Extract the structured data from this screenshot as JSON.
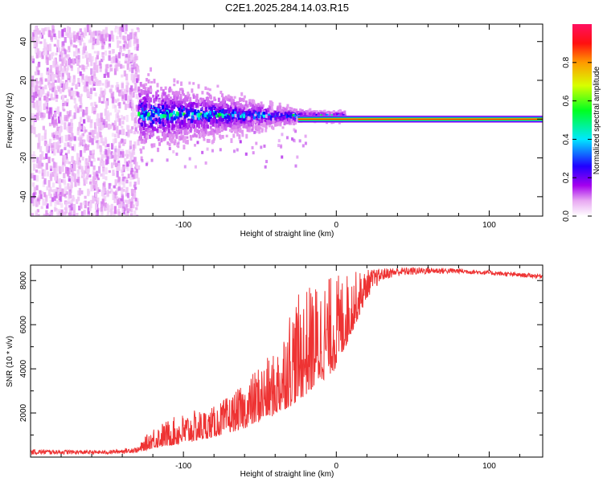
{
  "title": "C2E1.2025.284.14.03.R15",
  "chart_data": [
    {
      "type": "heatmap",
      "name": "spectrogram",
      "xlabel": "Height of straight line (km)",
      "ylabel": "Frequency (Hz)",
      "xlim": [
        -200,
        135
      ],
      "ylim": [
        -50,
        49
      ],
      "xticks": [
        -100,
        0,
        100
      ],
      "xtick_labels": [
        "-100",
        "0",
        "100"
      ],
      "yticks": [
        -40,
        -20,
        0,
        20,
        40
      ],
      "ytick_labels": [
        "-40",
        "-20",
        "0",
        "20",
        "40"
      ],
      "carrier_frequency_hz": 0,
      "carrier_start_km": -25,
      "noise_region_end_km": -130,
      "colorbar": {
        "label": "Normalized spectral amplitude",
        "range": [
          0,
          1
        ],
        "ticks": [
          0.0,
          0.2,
          0.4,
          0.6,
          0.8
        ],
        "tick_labels": [
          "0.0",
          "0.2",
          "0.4",
          "0.6",
          "0.8"
        ],
        "colormap": [
          "#ffffff",
          "#dd88ee",
          "#9a00ee",
          "#0000ff",
          "#00ffff",
          "#00ff00",
          "#ffff00",
          "#ff7f00",
          "#ff0000"
        ]
      }
    },
    {
      "type": "line",
      "name": "snr",
      "xlabel": "Height of straight line (km)",
      "ylabel": "SNR (10 * v/v)",
      "xlim": [
        -200,
        135
      ],
      "ylim": [
        0,
        8700
      ],
      "xticks": [
        -100,
        0,
        100
      ],
      "xtick_labels": [
        "-100",
        "0",
        "100"
      ],
      "yticks": [
        2000,
        4000,
        6000,
        8000
      ],
      "ytick_labels": [
        "2000",
        "4000",
        "6000",
        "8000"
      ],
      "color": "#ee3333",
      "envelope": {
        "x": [
          -200,
          -150,
          -130,
          -120,
          -100,
          -80,
          -60,
          -50,
          -40,
          -30,
          -20,
          -10,
          0,
          10,
          20,
          30,
          40,
          60,
          80,
          100,
          120,
          135
        ],
        "baseline": [
          120,
          130,
          200,
          400,
          600,
          900,
          1300,
          1600,
          1900,
          2300,
          2800,
          3400,
          4000,
          5600,
          7200,
          8000,
          8200,
          8300,
          8320,
          8250,
          8150,
          8100
        ],
        "peak": [
          350,
          300,
          450,
          1400,
          2000,
          2300,
          3300,
          4300,
          4700,
          7000,
          7700,
          8100,
          8300,
          8400,
          8500,
          8550,
          8600,
          8600,
          8550,
          8450,
          8350,
          8300
        ]
      }
    }
  ]
}
